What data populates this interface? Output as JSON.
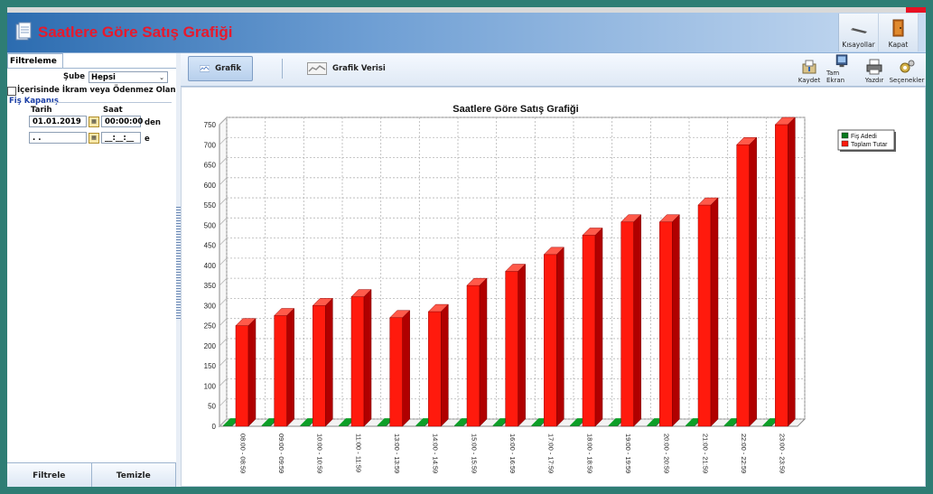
{
  "window": {
    "title": "Saatlere Göre Satış Grafiği",
    "header_buttons": [
      {
        "label": "Kısayollar",
        "icon": "shortcut-icon"
      },
      {
        "label": "Kapat",
        "icon": "door-exit-icon"
      }
    ]
  },
  "filter_panel": {
    "tab_label": "Filtreleme",
    "sube_label": "Şube",
    "sube_value": "Hepsi",
    "checkbox_label": "İçerisinde İkram veya Ödenmez Olanlar",
    "section_title": "Fiş Kapanış",
    "col_date": "Tarih",
    "col_time": "Saat",
    "from_date": "01.01.2019",
    "from_time": "00:00:00",
    "from_suffix": "den",
    "to_date": " . .",
    "to_time": "__:__:__",
    "to_suffix": "e",
    "filter_button": "Filtrele",
    "clear_button": "Temizle"
  },
  "toolbar": {
    "tabs": [
      {
        "label": "Grafik",
        "active": true
      },
      {
        "label": "Grafik Verisi",
        "active": false
      }
    ],
    "tools": [
      {
        "label": "Kaydet",
        "icon": "save-icon"
      },
      {
        "label": "Tam Ekran",
        "icon": "fullscreen-icon"
      },
      {
        "label": "Yazdır",
        "icon": "printer-icon"
      },
      {
        "label": "Seçenekler",
        "icon": "options-icon"
      }
    ]
  },
  "chart_data": {
    "type": "bar",
    "title": "Saatlere Göre Satış Grafiği",
    "xlabel": "",
    "ylabel": "",
    "ylim": [
      0,
      750
    ],
    "yticks": [
      0,
      50,
      100,
      150,
      200,
      250,
      300,
      350,
      400,
      450,
      500,
      550,
      600,
      650,
      700,
      750
    ],
    "grid": true,
    "legend_position": "top-right",
    "categories": [
      "08:00 - 08:59",
      "09:00 - 09:59",
      "10:00 - 10:59",
      "11:00 - 11:59",
      "13:00 - 13:59",
      "14:00 - 14:59",
      "15:00 - 15:59",
      "16:00 - 16:59",
      "17:00 - 17:59",
      "18:00 - 18:59",
      "19:00 - 19:59",
      "20:00 - 20:59",
      "21:00 - 21:59",
      "22:00 - 22:59",
      "23:00 - 23:59"
    ],
    "series": [
      {
        "name": "Fiş Adedi",
        "color": "#0a7a1e",
        "values": [
          2,
          2,
          2,
          2,
          2,
          2,
          2,
          2,
          2,
          2,
          2,
          2,
          2,
          2,
          2
        ]
      },
      {
        "name": "Toplam Tutar",
        "color": "#ff1a0d",
        "values": [
          250,
          275,
          300,
          322,
          270,
          285,
          350,
          385,
          427,
          475,
          508,
          508,
          550,
          700,
          750
        ]
      }
    ]
  }
}
